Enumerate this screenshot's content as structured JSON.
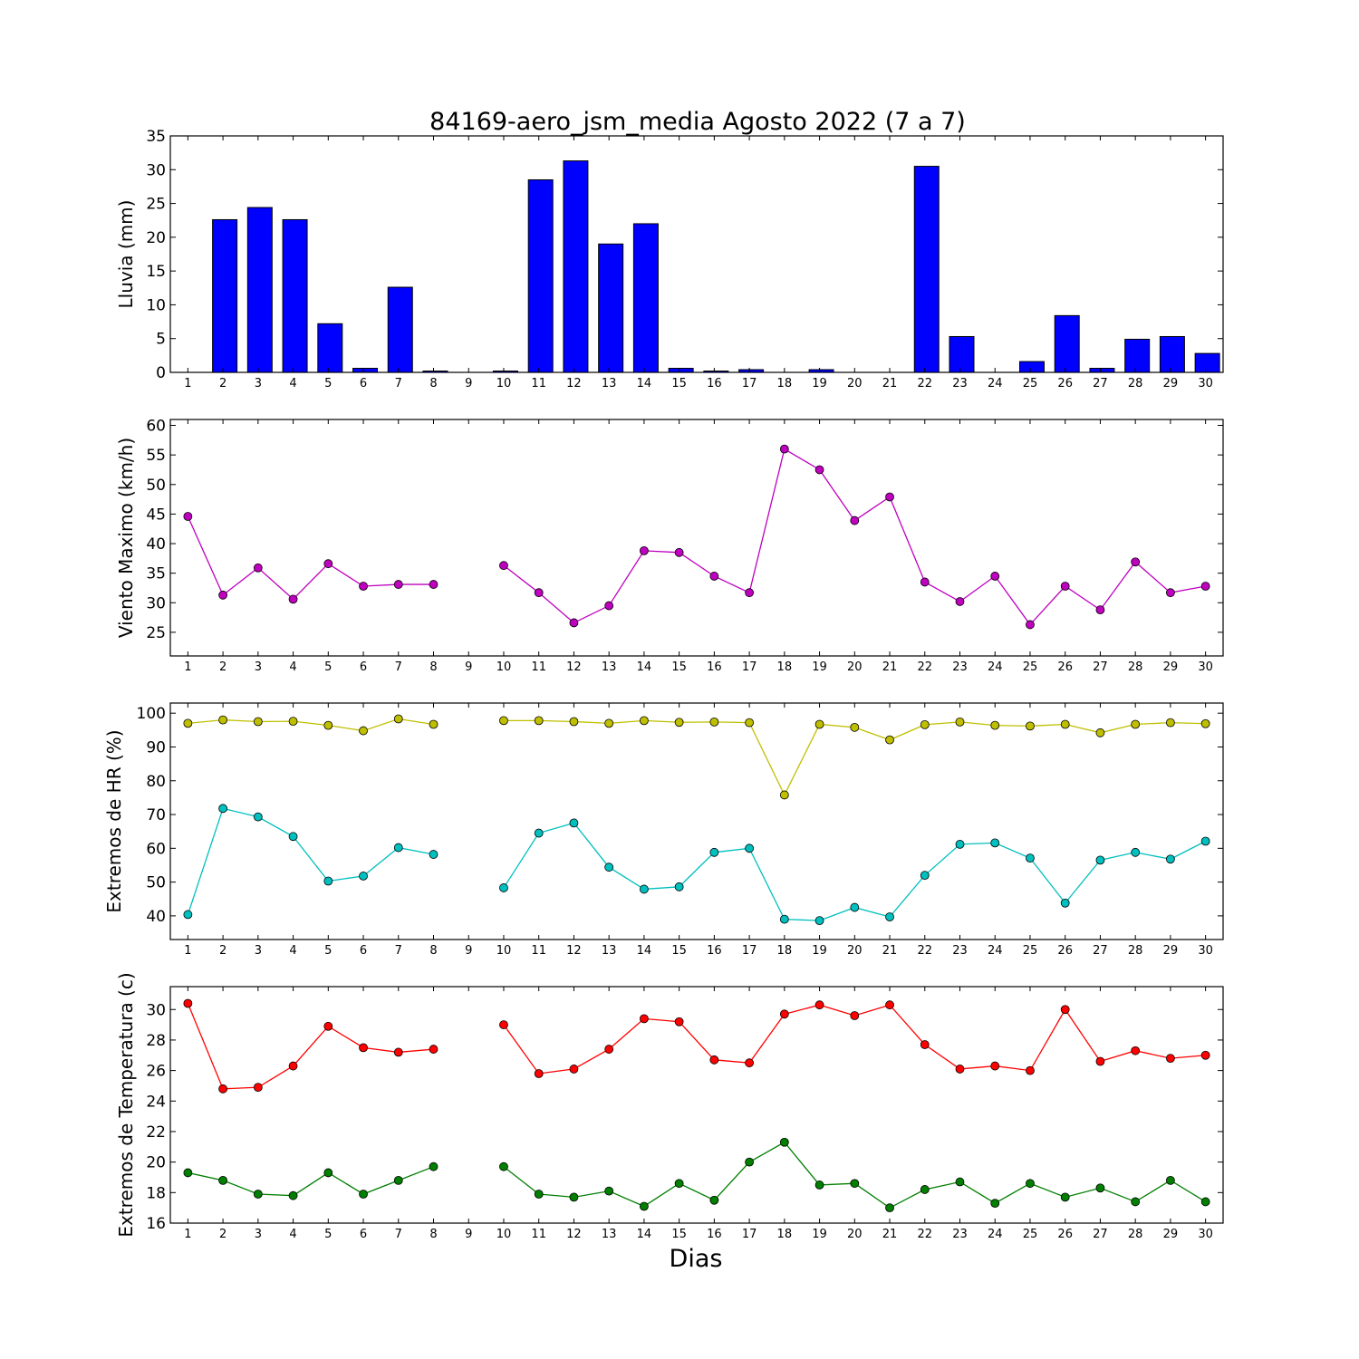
{
  "figure": {
    "title": "84169-aero_jsm_media Agosto 2022  (7 a 7)",
    "xlabel": "Dias"
  },
  "chart_data": [
    {
      "type": "bar",
      "ylabel": "Lluvia (mm)",
      "ylim": [
        0,
        35
      ],
      "yticks": [
        0,
        5,
        10,
        15,
        20,
        25,
        30,
        35
      ],
      "categories": [
        1,
        2,
        3,
        4,
        5,
        6,
        7,
        8,
        9,
        10,
        11,
        12,
        13,
        14,
        15,
        16,
        17,
        18,
        19,
        20,
        21,
        22,
        23,
        24,
        25,
        26,
        27,
        28,
        29,
        30
      ],
      "series": [
        {
          "color": "#0000ff",
          "values": [
            0,
            22.6,
            24.4,
            22.6,
            7.2,
            0.6,
            12.6,
            0.2,
            0,
            0.2,
            28.5,
            31.3,
            19,
            22,
            0.6,
            0.2,
            0.4,
            0,
            0.4,
            0,
            0,
            30.5,
            5.3,
            0,
            1.6,
            8.4,
            0.6,
            4.9,
            5.3,
            2.8
          ]
        }
      ]
    },
    {
      "type": "line",
      "ylabel": "Viento Maximo (km/h)",
      "ylim": [
        21,
        61
      ],
      "yticks": [
        25,
        30,
        35,
        40,
        45,
        50,
        55,
        60
      ],
      "categories": [
        1,
        2,
        3,
        4,
        5,
        6,
        7,
        8,
        9,
        10,
        11,
        12,
        13,
        14,
        15,
        16,
        17,
        18,
        19,
        20,
        21,
        22,
        23,
        24,
        25,
        26,
        27,
        28,
        29,
        30
      ],
      "series": [
        {
          "color": "#bf00bf",
          "values": [
            44.6,
            31.3,
            35.9,
            30.6,
            36.6,
            32.8,
            33.1,
            33.1,
            null,
            36.3,
            31.7,
            26.6,
            29.5,
            38.8,
            38.5,
            34.5,
            31.7,
            56.0,
            52.5,
            43.9,
            47.9,
            33.5,
            30.2,
            34.5,
            26.3,
            32.8,
            28.8,
            36.9,
            31.7,
            32.8
          ]
        }
      ]
    },
    {
      "type": "line",
      "ylabel": "Extremos de HR (%)",
      "ylim": [
        33,
        103
      ],
      "yticks": [
        40,
        50,
        60,
        70,
        80,
        90,
        100
      ],
      "categories": [
        1,
        2,
        3,
        4,
        5,
        6,
        7,
        8,
        9,
        10,
        11,
        12,
        13,
        14,
        15,
        16,
        17,
        18,
        19,
        20,
        21,
        22,
        23,
        24,
        25,
        26,
        27,
        28,
        29,
        30
      ],
      "series": [
        {
          "color": "#bfbf00",
          "values": [
            97,
            98,
            97.5,
            97.6,
            96.4,
            94.8,
            98.3,
            96.7,
            null,
            97.8,
            97.8,
            97.5,
            97,
            97.8,
            97.3,
            97.4,
            97.2,
            75.8,
            96.7,
            95.8,
            92.1,
            96.6,
            97.4,
            96.4,
            96.2,
            96.7,
            94.2,
            96.7,
            97.2,
            96.9
          ]
        },
        {
          "color": "#00bfbf",
          "values": [
            40.4,
            71.8,
            69.3,
            63.5,
            50.3,
            51.8,
            60.2,
            58.2,
            null,
            48.3,
            64.5,
            67.5,
            54.4,
            47.9,
            48.6,
            58.8,
            60.0,
            39.0,
            38.6,
            42.5,
            39.7,
            52.0,
            61.2,
            61.6,
            57.1,
            43.8,
            56.5,
            58.8,
            56.8,
            62.1
          ]
        }
      ]
    },
    {
      "type": "line",
      "ylabel": "Extremos de Temperatura (c)",
      "ylim": [
        16,
        31.5
      ],
      "yticks": [
        16,
        18,
        20,
        22,
        24,
        26,
        28,
        30
      ],
      "categories": [
        1,
        2,
        3,
        4,
        5,
        6,
        7,
        8,
        9,
        10,
        11,
        12,
        13,
        14,
        15,
        16,
        17,
        18,
        19,
        20,
        21,
        22,
        23,
        24,
        25,
        26,
        27,
        28,
        29,
        30
      ],
      "series": [
        {
          "color": "#ff0000",
          "values": [
            30.4,
            24.8,
            24.9,
            26.3,
            28.9,
            27.5,
            27.2,
            27.4,
            null,
            29.0,
            25.8,
            26.1,
            27.4,
            29.4,
            29.2,
            26.7,
            26.5,
            29.7,
            30.3,
            29.6,
            30.3,
            27.7,
            26.1,
            26.3,
            26.0,
            30.0,
            26.6,
            27.3,
            26.8,
            27.0
          ]
        },
        {
          "color": "#007f00",
          "values": [
            19.3,
            18.8,
            17.9,
            17.8,
            19.3,
            17.9,
            18.8,
            19.7,
            null,
            19.7,
            17.9,
            17.7,
            18.1,
            17.1,
            18.6,
            17.5,
            20.0,
            21.3,
            18.5,
            18.6,
            17.0,
            18.2,
            18.7,
            17.3,
            18.6,
            17.7,
            18.3,
            17.4,
            18.8,
            17.4
          ]
        }
      ]
    }
  ]
}
